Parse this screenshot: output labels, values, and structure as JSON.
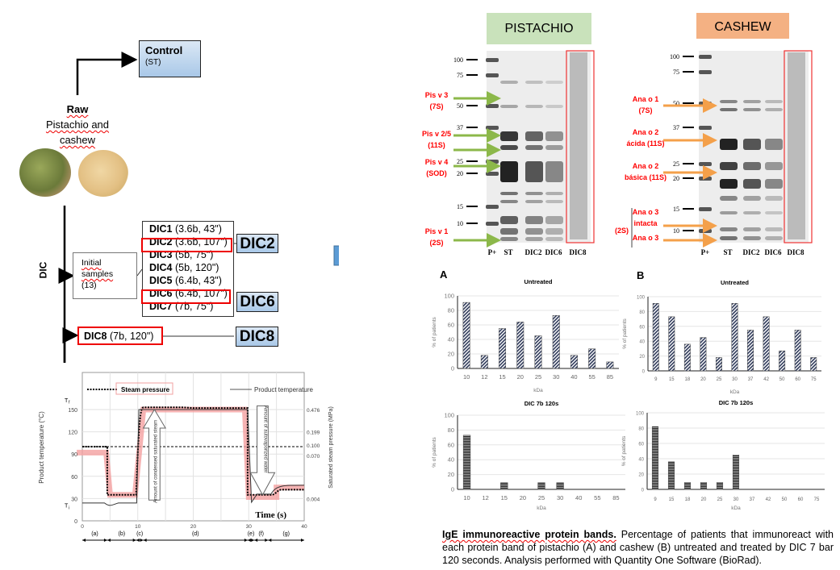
{
  "flow": {
    "control_title": "Control",
    "control_sub": "(ST)",
    "raw_title": "Raw",
    "raw_line1": "Pistachio and",
    "raw_line2": "cashew",
    "dic_label": "DIC",
    "initial_line1": "Initial",
    "initial_line2": "samples",
    "initial_line3": "(13)",
    "dic_list": [
      {
        "name": "DIC1",
        "params": " (3.6b, 43\")"
      },
      {
        "name": "DIC2",
        "params": " (3.6b, 107\")"
      },
      {
        "name": "DIC3",
        "params": " (5b, 75\")"
      },
      {
        "name": "DIC4",
        "params": " (5b, 120\")"
      },
      {
        "name": "DIC5",
        "params": " (6.4b, 43\")"
      },
      {
        "name": "DIC6",
        "params": " (6.4b, 107\")"
      },
      {
        "name": "DIC7",
        "params": " (7b, 75\")"
      }
    ],
    "dic8_name": "DIC8",
    "dic8_params": " (7b, 120\")",
    "selected": [
      "DIC2",
      "DIC6",
      "DIC8"
    ]
  },
  "process_chart": {
    "legend_steam": "Steam pressure",
    "legend_product": "Product temperature",
    "ylabel_left": "Product temperature (°C)",
    "ylabel_right": "Saturated steam pressure (MPa)",
    "xlabel": "Time  (s)",
    "y_ticks_left": [
      "0",
      "30",
      "60",
      "90",
      "120",
      "150"
    ],
    "y_ticks_right": [
      "0.004",
      "0.070",
      "0.100",
      "0.199",
      "0.476"
    ],
    "tf_label": "T",
    "tf_sub": "f",
    "ti_label": "T",
    "ti_sub": "i",
    "x_ticks": [
      "0",
      "10",
      "20",
      "30",
      "40"
    ],
    "phases": [
      "(a)",
      "(b)",
      "(c)",
      "(d)",
      "(e)",
      "(f)",
      "(g)"
    ],
    "arrow_up_text": "Amount of condensed saturated steam",
    "arrow_down_text": "Amount of autovaporized water"
  },
  "gels": {
    "pistachio": {
      "title": "PISTACHIO",
      "title_bg": "#c9e2bb",
      "arrow_color": "#8cb84a",
      "ladder": [
        "100",
        "75",
        "50",
        "37",
        "25",
        "20",
        "15",
        "10"
      ],
      "lanes": [
        "P+",
        "ST",
        "DIC2",
        "DIC6",
        "DIC8"
      ],
      "annotations": [
        {
          "l1": "Pis v 3",
          "l2": "(7S)"
        },
        {
          "l1": "Pis v 2/5",
          "l2": "(11S)"
        },
        {
          "l1": "Pis v 4",
          "l2": "(SOD)"
        },
        {
          "l1": "Pis v 1",
          "l2": "(2S)"
        }
      ]
    },
    "cashew": {
      "title": "CASHEW",
      "title_bg": "#f4b183",
      "arrow_color": "#f4a04a",
      "ladder": [
        "100",
        "75",
        "50",
        "37",
        "25",
        "20",
        "15",
        "10"
      ],
      "lanes": [
        "P+",
        "ST",
        "DIC2",
        "DIC6",
        "DIC8"
      ],
      "annotations": [
        {
          "l1": "Ana o 1",
          "l2": "(7S)"
        },
        {
          "l1": "Ana o 2",
          "l2": "ácida (11S)"
        },
        {
          "l1": "Ana o 2",
          "l2": "básica (11S)"
        },
        {
          "l1": "Ana o 3",
          "l2": "intacta"
        },
        {
          "l1": "Ana o 3",
          "l2": ""
        }
      ],
      "group_label": "(2S)"
    }
  },
  "panel_labels": {
    "a": "A",
    "b": "B"
  },
  "chart_data": [
    {
      "id": "a_untreated",
      "type": "bar",
      "title": "Untreated",
      "xlabel": "kDa",
      "ylabel": "% of patients",
      "ylim": [
        0,
        100
      ],
      "yticks": [
        "0",
        "20",
        "40",
        "60",
        "80",
        "100"
      ],
      "categories": [
        "10",
        "12",
        "15",
        "20",
        "25",
        "30",
        "40",
        "55",
        "85"
      ],
      "values": [
        91,
        18,
        55,
        64,
        45,
        73,
        18,
        27,
        9
      ],
      "pattern": "diagonal"
    },
    {
      "id": "b_untreated",
      "type": "bar",
      "title": "Untreated",
      "xlabel": "kDa",
      "ylabel": "% of patients",
      "ylim": [
        0,
        100
      ],
      "yticks": [
        "0",
        "20",
        "40",
        "60",
        "80",
        "100"
      ],
      "categories": [
        "9",
        "15",
        "18",
        "20",
        "25",
        "30",
        "37",
        "42",
        "50",
        "60",
        "75"
      ],
      "values": [
        91,
        73,
        36,
        45,
        18,
        91,
        55,
        73,
        27,
        55,
        18
      ],
      "pattern": "diagonal"
    },
    {
      "id": "a_dic",
      "type": "bar",
      "title": "DIC 7b 120s",
      "xlabel": "kDa",
      "ylabel": "% of patients",
      "ylim": [
        0,
        100
      ],
      "yticks": [
        "0",
        "20",
        "40",
        "60",
        "80",
        "100"
      ],
      "categories": [
        "10",
        "12",
        "15",
        "20",
        "25",
        "30",
        "40",
        "55",
        "85"
      ],
      "values": [
        73,
        0,
        9,
        0,
        9,
        9,
        0,
        0,
        0
      ],
      "pattern": "horizontal"
    },
    {
      "id": "b_dic",
      "type": "bar",
      "title": "DIC 7b 120s",
      "xlabel": "kDa",
      "ylabel": "% of patients",
      "ylim": [
        0,
        100
      ],
      "yticks": [
        "0",
        "20",
        "40",
        "60",
        "80",
        "100"
      ],
      "categories": [
        "9",
        "15",
        "18",
        "20",
        "25",
        "30",
        "37",
        "42",
        "50",
        "60",
        "75"
      ],
      "values": [
        82,
        36,
        9,
        9,
        9,
        45,
        0,
        0,
        0,
        0,
        0
      ],
      "pattern": "horizontal"
    }
  ],
  "caption": {
    "bold": "IgE immunoreactive protein bands.",
    "text": " Percentage of patients that immunoreact with each protein band of pistachio (A) and cashew (B) untreated and treated by DIC 7 bar 120 seconds. Analysis performed with Quantity One Software (BioRad)."
  }
}
